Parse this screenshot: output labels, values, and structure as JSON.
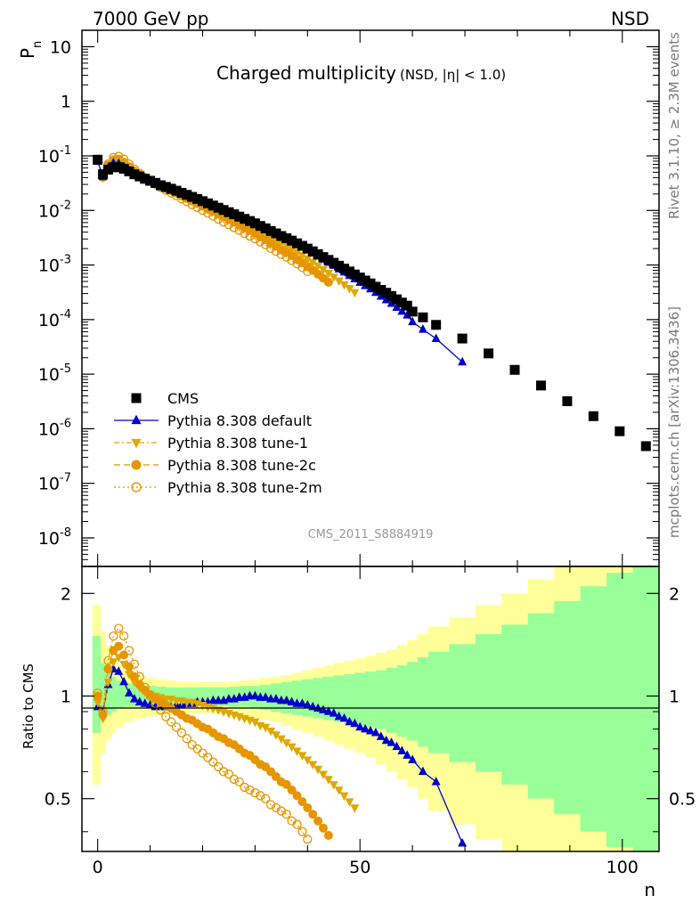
{
  "header": {
    "left": "7000 GeV pp",
    "right": "NSD"
  },
  "side_text": {
    "rivet": "Rivet 3.1.10, ≥ 2.3M events",
    "mcplots": "mcplots.cern.ch [arXiv:1306.3436]"
  },
  "main_plot": {
    "title": "Charged multiplicity",
    "title_sub": "(NSD, |η| < 1.0)",
    "ylabel": "P",
    "ylabel_sub": "n",
    "analysis_id": "CMS_2011_S8884919",
    "y_ticks": [
      {
        "base": "10",
        "exp": "-8",
        "v": 1e-08
      },
      {
        "base": "10",
        "exp": "-7",
        "v": 1e-07
      },
      {
        "base": "10",
        "exp": "-6",
        "v": 1e-06
      },
      {
        "base": "10",
        "exp": "-5",
        "v": 1e-05
      },
      {
        "base": "10",
        "exp": "-4",
        "v": 0.0001
      },
      {
        "base": "10",
        "exp": "-3",
        "v": 0.001
      },
      {
        "base": "10",
        "exp": "-2",
        "v": 0.01
      },
      {
        "base": "10",
        "exp": "-1",
        "v": 0.1
      },
      {
        "base": "1",
        "exp": "",
        "v": 1
      },
      {
        "base": "10",
        "exp": "",
        "v": 10
      }
    ],
    "legend": [
      {
        "label": "CMS",
        "color": "#000000",
        "marker": "square",
        "dash": "none"
      },
      {
        "label": "Pythia 8.308 default",
        "color": "#0000cc",
        "marker": "triangle-up",
        "dash": "solid"
      },
      {
        "label": "Pythia 8.308 tune-1",
        "color": "#e0a800",
        "marker": "triangle-down",
        "dash": "dashdot"
      },
      {
        "label": "Pythia 8.308 tune-2c",
        "color": "#e69500",
        "marker": "circle",
        "dash": "dashed"
      },
      {
        "label": "Pythia 8.308 tune-2m",
        "color": "#e69500",
        "marker": "circle-open",
        "dash": "dotted"
      }
    ]
  },
  "ratio_plot": {
    "ylabel": "Ratio to CMS",
    "y_ticks": [
      {
        "label": "0.5",
        "v": 0.5
      },
      {
        "label": "1",
        "v": 1
      },
      {
        "label": "2",
        "v": 2
      }
    ]
  },
  "x_axis": {
    "label": "n",
    "ticks": [
      {
        "label": "0",
        "v": 0
      },
      {
        "label": "50",
        "v": 50
      },
      {
        "label": "100",
        "v": 100
      }
    ]
  },
  "chart_data": {
    "type": "scatter",
    "x_range": [
      -3,
      107
    ],
    "main_ylim": [
      3e-09,
      20
    ],
    "main_yscale": "log",
    "ratio_ylim": [
      0.35,
      2.4
    ],
    "ratio_yscale": "log",
    "grid": false,
    "legend_position": "bottom-left",
    "cms": {
      "name": "CMS",
      "x": [
        0,
        1,
        2,
        3,
        4,
        5,
        6,
        7,
        8,
        9,
        10,
        11,
        12,
        13,
        14,
        15,
        16,
        17,
        18,
        19,
        20,
        21,
        22,
        23,
        24,
        25,
        26,
        27,
        28,
        29,
        30,
        31,
        32,
        33,
        34,
        35,
        36,
        37,
        38,
        39,
        40,
        41,
        42,
        43,
        44,
        45,
        46,
        47,
        48,
        49,
        50,
        51,
        52,
        53,
        54,
        55,
        56,
        57,
        58,
        59,
        60,
        62,
        64.5,
        69.5,
        74.5,
        79.5,
        84.5,
        89.5,
        94.5,
        99.5,
        104.5
      ],
      "y": [
        0.085,
        0.046,
        0.056,
        0.062,
        0.062,
        0.058,
        0.052,
        0.046,
        0.042,
        0.038,
        0.035,
        0.032,
        0.029,
        0.027,
        0.025,
        0.023,
        0.021,
        0.0193,
        0.0177,
        0.0162,
        0.0148,
        0.0135,
        0.0123,
        0.0112,
        0.0102,
        0.0093,
        0.0085,
        0.0077,
        0.007,
        0.0064,
        0.0058,
        0.0052,
        0.0047,
        0.0042,
        0.0038,
        0.0034,
        0.0031,
        0.0028,
        0.0025,
        0.00225,
        0.002,
        0.00178,
        0.00158,
        0.0014,
        0.00124,
        0.0011,
        0.00097,
        0.00086,
        0.00076,
        0.00067,
        0.00059,
        0.00052,
        0.00046,
        0.0004,
        0.00035,
        0.00031,
        0.00027,
        0.000235,
        0.000205,
        0.00018,
        0.00014,
        0.00011,
        8e-05,
        4.5e-05,
        2.4e-05,
        1.2e-05,
        6.2e-06,
        3.2e-06,
        1.7e-06,
        9e-07,
        4.8e-07
      ]
    },
    "envelope": {
      "x_edges": [
        -1,
        0.5,
        1.5,
        2.5,
        3.5,
        5,
        7,
        9,
        11,
        13,
        15,
        17,
        19,
        21,
        23,
        25,
        27,
        29,
        31,
        33,
        35,
        37,
        39,
        41,
        43,
        45,
        47,
        49,
        51,
        53,
        55,
        57,
        59,
        61,
        63,
        67,
        72,
        77,
        82,
        87,
        92,
        97,
        102,
        107
      ],
      "green_hi": [
        1.5,
        1.25,
        1.18,
        1.14,
        1.11,
        1.09,
        1.08,
        1.07,
        1.065,
        1.06,
        1.06,
        1.06,
        1.06,
        1.06,
        1.06,
        1.065,
        1.07,
        1.07,
        1.08,
        1.09,
        1.1,
        1.11,
        1.12,
        1.13,
        1.14,
        1.15,
        1.16,
        1.17,
        1.18,
        1.19,
        1.21,
        1.23,
        1.26,
        1.3,
        1.35,
        1.42,
        1.52,
        1.62,
        1.75,
        1.9,
        2.1,
        2.3,
        2.5
      ],
      "green_lo": [
        0.78,
        0.85,
        0.88,
        0.9,
        0.92,
        0.93,
        0.93,
        0.935,
        0.94,
        0.94,
        0.94,
        0.94,
        0.94,
        0.94,
        0.935,
        0.93,
        0.93,
        0.92,
        0.91,
        0.9,
        0.89,
        0.88,
        0.87,
        0.86,
        0.85,
        0.84,
        0.83,
        0.82,
        0.81,
        0.8,
        0.78,
        0.76,
        0.74,
        0.71,
        0.68,
        0.64,
        0.6,
        0.55,
        0.5,
        0.45,
        0.4,
        0.36,
        0.35
      ],
      "yellow_hi": [
        1.85,
        1.55,
        1.4,
        1.3,
        1.23,
        1.18,
        1.15,
        1.13,
        1.12,
        1.11,
        1.1,
        1.1,
        1.1,
        1.1,
        1.1,
        1.1,
        1.11,
        1.12,
        1.13,
        1.14,
        1.15,
        1.17,
        1.19,
        1.21,
        1.23,
        1.25,
        1.27,
        1.29,
        1.31,
        1.34,
        1.37,
        1.41,
        1.46,
        1.52,
        1.6,
        1.7,
        1.85,
        2.0,
        2.2,
        2.4,
        2.4,
        2.4,
        2.4
      ],
      "yellow_lo": [
        0.55,
        0.68,
        0.74,
        0.78,
        0.81,
        0.84,
        0.86,
        0.87,
        0.88,
        0.885,
        0.89,
        0.89,
        0.89,
        0.89,
        0.885,
        0.88,
        0.87,
        0.86,
        0.85,
        0.84,
        0.82,
        0.8,
        0.78,
        0.76,
        0.74,
        0.72,
        0.7,
        0.68,
        0.66,
        0.63,
        0.6,
        0.57,
        0.54,
        0.5,
        0.46,
        0.42,
        0.38,
        0.35,
        0.35,
        0.35,
        0.35,
        0.35,
        0.35
      ]
    },
    "ratio_series": [
      {
        "name": "Pythia 8.308 default",
        "x": [
          0,
          1,
          2,
          3,
          4,
          5,
          6,
          7,
          8,
          9,
          10,
          11,
          12,
          13,
          14,
          15,
          16,
          17,
          18,
          19,
          20,
          21,
          22,
          23,
          24,
          25,
          26,
          27,
          28,
          29,
          30,
          31,
          32,
          33,
          34,
          35,
          36,
          37,
          38,
          39,
          40,
          41,
          42,
          43,
          44,
          45,
          46,
          47,
          48,
          49,
          50,
          51,
          52,
          53,
          54,
          55,
          56,
          57,
          58,
          59,
          60,
          62,
          64.5,
          69.5
        ],
        "y": [
          0.93,
          0.9,
          1.08,
          1.2,
          1.18,
          1.1,
          1.02,
          0.98,
          0.96,
          0.95,
          0.94,
          0.93,
          0.93,
          0.93,
          0.93,
          0.94,
          0.94,
          0.95,
          0.95,
          0.96,
          0.96,
          0.96,
          0.97,
          0.97,
          0.97,
          0.98,
          0.98,
          0.99,
          0.99,
          1.0,
          1.0,
          0.99,
          0.99,
          0.98,
          0.98,
          0.97,
          0.97,
          0.96,
          0.95,
          0.95,
          0.94,
          0.93,
          0.92,
          0.91,
          0.9,
          0.89,
          0.87,
          0.86,
          0.84,
          0.83,
          0.81,
          0.8,
          0.79,
          0.78,
          0.76,
          0.74,
          0.73,
          0.71,
          0.69,
          0.67,
          0.65,
          0.6,
          0.56,
          0.37
        ]
      },
      {
        "name": "Pythia 8.308 tune-1",
        "x": [
          0,
          1,
          2,
          3,
          4,
          5,
          6,
          7,
          8,
          9,
          10,
          11,
          12,
          13,
          14,
          15,
          16,
          17,
          18,
          19,
          20,
          21,
          22,
          23,
          24,
          25,
          26,
          27,
          28,
          29,
          30,
          31,
          32,
          33,
          34,
          35,
          36,
          37,
          38,
          39,
          40,
          41,
          42,
          43,
          44,
          45,
          46,
          47,
          48,
          49
        ],
        "y": [
          0.96,
          0.86,
          1.1,
          1.26,
          1.3,
          1.24,
          1.16,
          1.1,
          1.06,
          1.03,
          1.01,
          1.0,
          0.99,
          0.98,
          0.98,
          0.97,
          0.97,
          0.96,
          0.96,
          0.95,
          0.94,
          0.93,
          0.92,
          0.91,
          0.9,
          0.89,
          0.88,
          0.87,
          0.86,
          0.85,
          0.84,
          0.82,
          0.81,
          0.79,
          0.77,
          0.75,
          0.73,
          0.71,
          0.69,
          0.67,
          0.65,
          0.63,
          0.61,
          0.59,
          0.57,
          0.55,
          0.53,
          0.51,
          0.49,
          0.47
        ]
      },
      {
        "name": "Pythia 8.308 tune-2c",
        "x": [
          0,
          1,
          2,
          3,
          4,
          5,
          6,
          7,
          8,
          9,
          10,
          11,
          12,
          13,
          14,
          15,
          16,
          17,
          18,
          19,
          20,
          21,
          22,
          23,
          24,
          25,
          26,
          27,
          28,
          29,
          30,
          31,
          32,
          33,
          34,
          35,
          36,
          37,
          38,
          39,
          40,
          41,
          42,
          43,
          44
        ],
        "y": [
          1.0,
          0.88,
          1.2,
          1.36,
          1.4,
          1.32,
          1.22,
          1.14,
          1.08,
          1.04,
          1.01,
          0.98,
          0.96,
          0.94,
          0.92,
          0.9,
          0.88,
          0.86,
          0.85,
          0.83,
          0.81,
          0.8,
          0.78,
          0.76,
          0.75,
          0.73,
          0.72,
          0.7,
          0.68,
          0.67,
          0.65,
          0.63,
          0.62,
          0.6,
          0.58,
          0.56,
          0.55,
          0.53,
          0.51,
          0.49,
          0.47,
          0.45,
          0.43,
          0.41,
          0.39
        ]
      },
      {
        "name": "Pythia 8.308 tune-2m",
        "x": [
          0,
          1,
          2,
          3,
          4,
          5,
          6,
          7,
          8,
          9,
          10,
          11,
          12,
          13,
          14,
          15,
          16,
          17,
          18,
          19,
          20,
          21,
          22,
          23,
          24,
          25,
          26,
          27,
          28,
          29,
          30,
          31,
          32,
          33,
          34,
          35,
          36,
          37,
          38,
          39,
          40
        ],
        "y": [
          1.02,
          0.9,
          1.27,
          1.5,
          1.58,
          1.5,
          1.36,
          1.24,
          1.14,
          1.06,
          1.0,
          0.95,
          0.91,
          0.87,
          0.84,
          0.81,
          0.78,
          0.75,
          0.72,
          0.7,
          0.68,
          0.66,
          0.64,
          0.62,
          0.6,
          0.59,
          0.57,
          0.56,
          0.54,
          0.53,
          0.52,
          0.51,
          0.5,
          0.48,
          0.47,
          0.46,
          0.45,
          0.43,
          0.42,
          0.4,
          0.38
        ]
      }
    ]
  }
}
